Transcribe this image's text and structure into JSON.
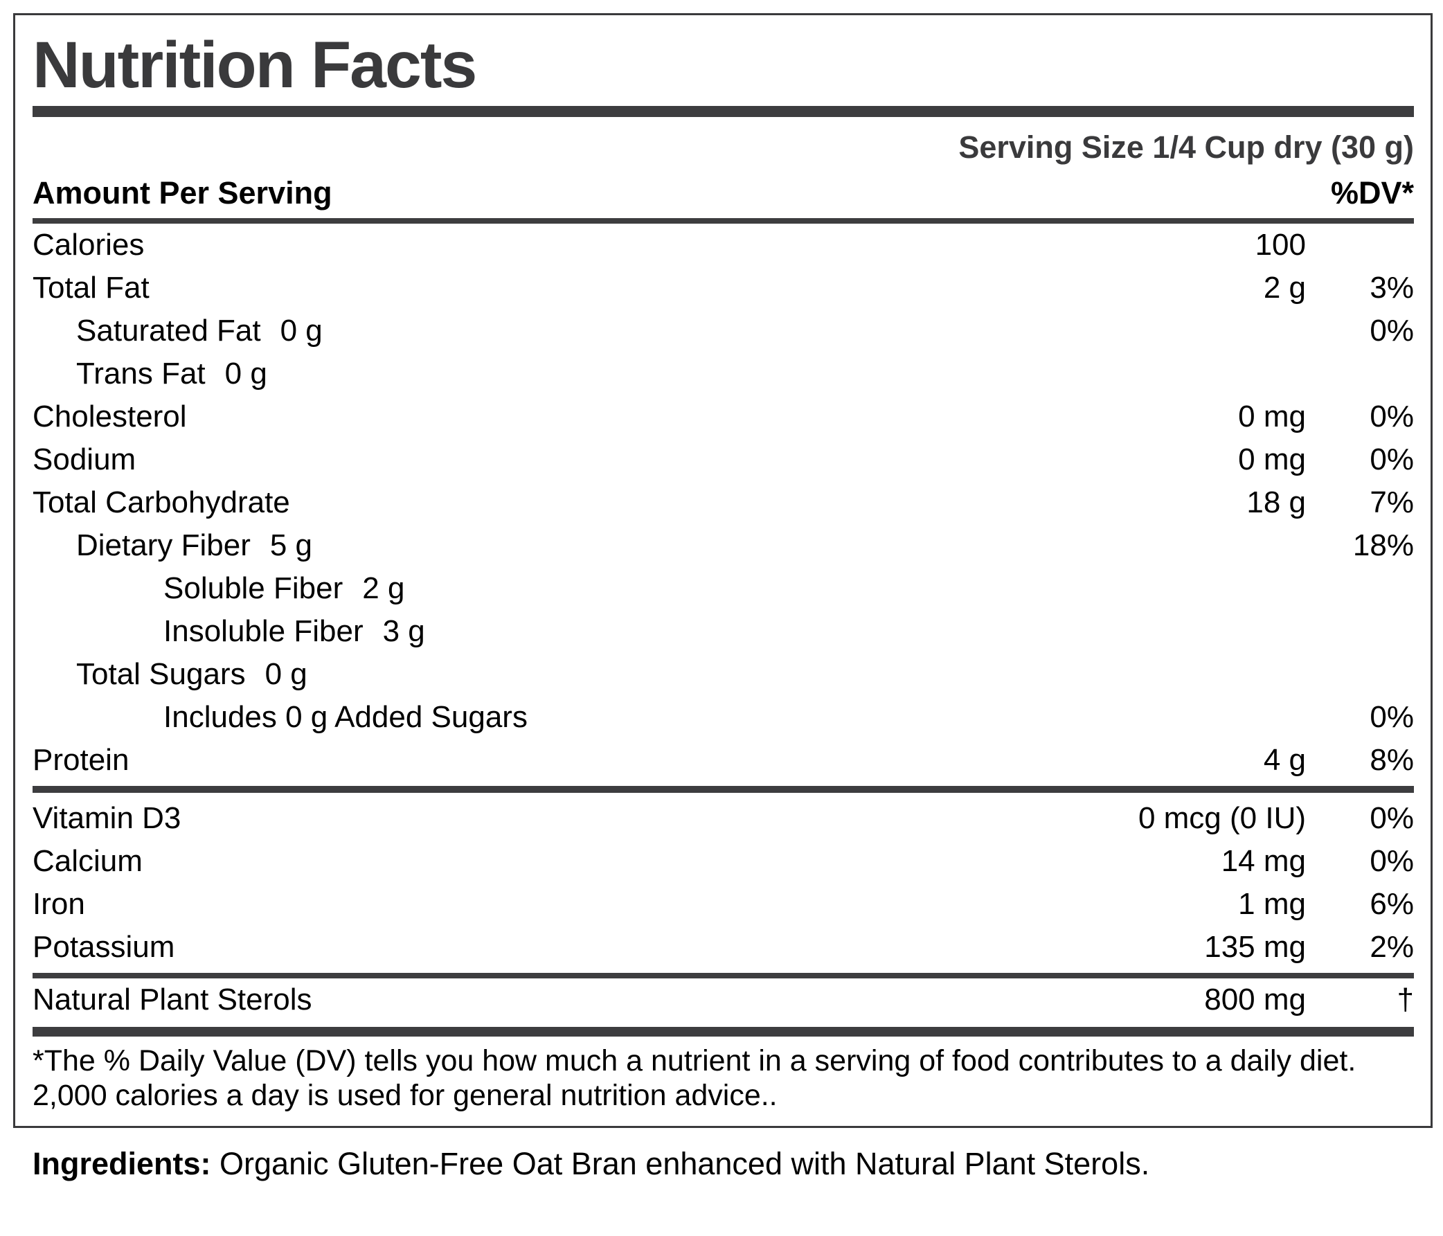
{
  "label": {
    "title": "Nutrition Facts",
    "serving_size": "Serving Size 1/4 Cup dry (30 g)",
    "amount_header": "Amount Per Serving",
    "dv_header": "%DV*",
    "rows": [
      {
        "name": "Calories",
        "indent": 0,
        "inline_amount": "",
        "amount": "100",
        "dv": "",
        "rule_after": ""
      },
      {
        "name": "Total Fat",
        "indent": 0,
        "inline_amount": "",
        "amount": "2 g",
        "dv": "3%",
        "rule_after": ""
      },
      {
        "name": "Saturated Fat",
        "indent": 1,
        "inline_amount": "0 g",
        "amount": "",
        "dv": "0%",
        "rule_after": ""
      },
      {
        "name": "Trans Fat",
        "indent": 1,
        "inline_amount": "0 g",
        "amount": "",
        "dv": "",
        "rule_after": ""
      },
      {
        "name": "Cholesterol",
        "indent": 0,
        "inline_amount": "",
        "amount": "0 mg",
        "dv": "0%",
        "rule_after": ""
      },
      {
        "name": "Sodium",
        "indent": 0,
        "inline_amount": "",
        "amount": "0 mg",
        "dv": "0%",
        "rule_after": ""
      },
      {
        "name": "Total Carbohydrate",
        "indent": 0,
        "inline_amount": "",
        "amount": "18 g",
        "dv": "7%",
        "rule_after": ""
      },
      {
        "name": "Dietary Fiber",
        "indent": 1,
        "inline_amount": "5 g",
        "amount": "",
        "dv": "18%",
        "rule_after": ""
      },
      {
        "name": "Soluble Fiber",
        "indent": 2,
        "inline_amount": "2 g",
        "amount": "",
        "dv": "",
        "rule_after": ""
      },
      {
        "name": "Insoluble Fiber",
        "indent": 2,
        "inline_amount": "3 g",
        "amount": "",
        "dv": "",
        "rule_after": ""
      },
      {
        "name": "Total Sugars",
        "indent": 1,
        "inline_amount": "0 g",
        "amount": "",
        "dv": "",
        "rule_after": ""
      },
      {
        "name": "Includes 0 g Added Sugars",
        "indent": 2,
        "inline_amount": "",
        "amount": "",
        "dv": "0%",
        "rule_after": ""
      },
      {
        "name": "Protein",
        "indent": 0,
        "inline_amount": "",
        "amount": "4 g",
        "dv": "8%",
        "rule_after": "lg"
      },
      {
        "name": "Vitamin D3",
        "indent": 0,
        "inline_amount": "",
        "amount": "0 mcg (0 IU)",
        "dv": "0%",
        "rule_after": ""
      },
      {
        "name": "Calcium",
        "indent": 0,
        "inline_amount": "",
        "amount": "14 mg",
        "dv": "0%",
        "rule_after": ""
      },
      {
        "name": "Iron",
        "indent": 0,
        "inline_amount": "",
        "amount": "1 mg",
        "dv": "6%",
        "rule_after": ""
      },
      {
        "name": "Potassium",
        "indent": 0,
        "inline_amount": "",
        "amount": "135 mg",
        "dv": "2%",
        "rule_after": "md2"
      },
      {
        "name": "Natural Plant Sterols",
        "indent": 0,
        "inline_amount": "",
        "amount": "800 mg",
        "dv": "†",
        "rule_after": "xxl"
      }
    ],
    "footnote": "*The % Daily Value (DV) tells you how much a nutrient in a serving of food contributes to a daily diet. 2,000 calories a day is used for general nutrition advice..",
    "ingredients_label": "Ingredients:",
    "ingredients_text": " Organic Gluten-Free Oat Bran enhanced with Natural Plant Sterols."
  },
  "colors": {
    "rule": "#3d3d3f",
    "title-color": "#3a3a3c",
    "text": "#000000",
    "border": "#3a3a3c",
    "bg": "#ffffff"
  }
}
